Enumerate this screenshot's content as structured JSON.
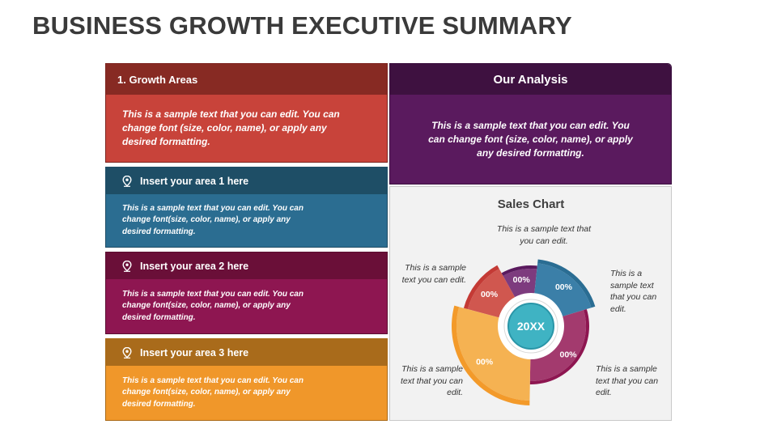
{
  "title": "BUSINESS GROWTH EXECUTIVE SUMMARY",
  "growth": {
    "heading": "1. Growth Areas",
    "text": "This is a sample text that you can edit. You can change font (size, color, name), or apply any desired formatting."
  },
  "areas": [
    {
      "heading": "Insert your area 1 here",
      "text": "This is a sample text that you can edit. You can change font(size, color, name), or apply any desired formatting.",
      "icon": "location-pin-icon"
    },
    {
      "heading": "Insert your area 2 here",
      "text": "This is a sample text that you can edit. You can change font(size, color, name), or apply any desired formatting.",
      "icon": "location-pin-icon"
    },
    {
      "heading": "Insert your area 3 here",
      "text": "This is a sample text that you can edit. You can change font(size, color, name), or apply any desired formatting.",
      "icon": "location-pin-icon"
    }
  ],
  "analysis": {
    "heading": "Our Analysis",
    "text": "This is a sample text that you can edit. You can change font (size, color, name), or apply any desired formatting."
  },
  "sales": {
    "heading": "Sales Chart",
    "center_label": "20XX",
    "segments": [
      {
        "label": "00%",
        "color": "#d0574f",
        "outer": "#c43a35"
      },
      {
        "label": "00%",
        "color": "#7d3b7e",
        "outer": "#5a1a5e"
      },
      {
        "label": "00%",
        "color": "#3b7fa8",
        "outer": "#2a6d93"
      },
      {
        "label": "00%",
        "color": "#a33a6e",
        "outer": "#8e1651"
      },
      {
        "label": "00%",
        "color": "#f5b252",
        "outer": "#f39a2a"
      }
    ],
    "notes": {
      "top": "This is a sample text that you can edit.",
      "upper_left": "This is a sample text you can edit.",
      "upper_right": "This is a sample text that you can edit.",
      "lower_left": "This is a sample text that you can edit.",
      "lower_right": "This is a sample text that you can edit."
    }
  }
}
